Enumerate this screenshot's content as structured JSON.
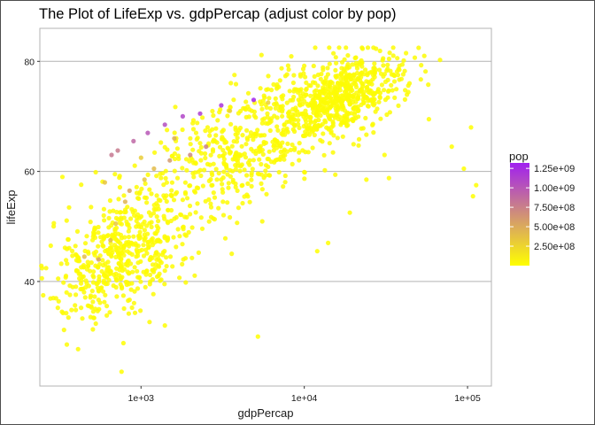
{
  "chart_data": {
    "type": "scatter",
    "title": "The Plot of LifeExp vs. gdpPercap (adjust color by pop)",
    "xlabel": "gdpPercap",
    "ylabel": "lifeExp",
    "x_scale": "log10",
    "xlim": [
      240,
      140000
    ],
    "ylim": [
      21,
      86
    ],
    "x_ticks": [
      1000,
      10000,
      100000
    ],
    "x_tick_labels": [
      "1e+03",
      "1e+04",
      "1e+05"
    ],
    "y_ticks": [
      40,
      60,
      80
    ],
    "y_tick_labels": [
      "40",
      "60",
      "80"
    ],
    "grid": "horizontal major",
    "legend": {
      "title": "pop",
      "placement": "right",
      "labels": [
        "1.25e+09",
        "1.00e+09",
        "7.50e+08",
        "5.00e+08",
        "2.50e+08"
      ],
      "values": [
        1250000000,
        1000000000,
        750000000,
        500000000,
        250000000
      ],
      "range": [
        60000,
        1320000000
      ],
      "low_color": "#FFFF00",
      "high_color": "#A020F0"
    },
    "point_opacity": 0.85,
    "highlight_points": [
      {
        "x": 660,
        "y": 63.0,
        "pop": 800000000
      },
      {
        "x": 720,
        "y": 63.8,
        "pop": 780000000
      },
      {
        "x": 900,
        "y": 65.5,
        "pop": 900000000
      },
      {
        "x": 1100,
        "y": 67.0,
        "pop": 1000000000
      },
      {
        "x": 1400,
        "y": 68.5,
        "pop": 1050000000
      },
      {
        "x": 1800,
        "y": 70.0,
        "pop": 1100000000
      },
      {
        "x": 2300,
        "y": 70.5,
        "pop": 1150000000
      },
      {
        "x": 3100,
        "y": 72.0,
        "pop": 1200000000
      },
      {
        "x": 4900,
        "y": 73.0,
        "pop": 1300000000
      },
      {
        "x": 1200,
        "y": 60.5,
        "pop": 400000000
      },
      {
        "x": 1500,
        "y": 62.0,
        "pop": 600000000
      },
      {
        "x": 2000,
        "y": 63.0,
        "pop": 700000000
      },
      {
        "x": 2500,
        "y": 64.5,
        "pop": 750000000
      },
      {
        "x": 1050,
        "y": 58.5,
        "pop": 350000000
      },
      {
        "x": 850,
        "y": 56.5,
        "pop": 550000000
      },
      {
        "x": 800,
        "y": 54.5,
        "pop": 450000000
      },
      {
        "x": 600,
        "y": 58.0,
        "pop": 350000000
      },
      {
        "x": 1600,
        "y": 66.0,
        "pop": 500000000
      },
      {
        "x": 1000,
        "y": 62.5,
        "pop": 300000000
      },
      {
        "x": 700,
        "y": 50.5,
        "pop": 350000000
      },
      {
        "x": 550,
        "y": 44.0,
        "pop": 560000000
      },
      {
        "x": 450,
        "y": 44.5,
        "pop": 400000000
      },
      {
        "x": 650,
        "y": 47.5,
        "pop": 400000000
      },
      {
        "x": 3500,
        "y": 71.0,
        "pop": 300000000
      },
      {
        "x": 6000,
        "y": 72.5,
        "pop": 280000000
      }
    ],
    "clouds": [
      {
        "n": 520,
        "lx_mean": 2.87,
        "lx_sd": 0.22,
        "y_mean": 45,
        "y_sd": 5.5,
        "slope": 12,
        "pop": 15000000
      },
      {
        "n": 480,
        "lx_mean": 3.62,
        "lx_sd": 0.32,
        "y_mean": 64,
        "y_sd": 5.5,
        "slope": 14,
        "pop": 20000000
      },
      {
        "n": 600,
        "lx_mean": 4.22,
        "lx_sd": 0.2,
        "y_mean": 73.5,
        "y_sd": 3.2,
        "slope": 9,
        "pop": 25000000
      }
    ],
    "outlier_points": [
      {
        "x": 58000,
        "y": 69.5,
        "pop": 5000000
      },
      {
        "x": 80000,
        "y": 64.5,
        "pop": 3000000
      },
      {
        "x": 95000,
        "y": 60.5,
        "pop": 2000000
      },
      {
        "x": 108000,
        "y": 55.5,
        "pop": 2000000
      },
      {
        "x": 113000,
        "y": 57.5,
        "pop": 2000000
      },
      {
        "x": 105000,
        "y": 68.0,
        "pop": 2000000
      },
      {
        "x": 31000,
        "y": 63.0,
        "pop": 3000000
      },
      {
        "x": 24000,
        "y": 58.5,
        "pop": 3000000
      },
      {
        "x": 33000,
        "y": 58.8,
        "pop": 3000000
      },
      {
        "x": 19000,
        "y": 52.5,
        "pop": 2000000
      },
      {
        "x": 14000,
        "y": 47.0,
        "pop": 2000000
      },
      {
        "x": 12000,
        "y": 45.5,
        "pop": 2000000
      },
      {
        "x": 760,
        "y": 23.6,
        "pop": 5000000
      },
      {
        "x": 780,
        "y": 28.8,
        "pop": 5000000
      },
      {
        "x": 1400,
        "y": 32.0,
        "pop": 5000000
      },
      {
        "x": 5200,
        "y": 30.0,
        "pop": 3000000
      },
      {
        "x": 350,
        "y": 38.0,
        "pop": 3000000
      },
      {
        "x": 280,
        "y": 46.5,
        "pop": 3000000
      },
      {
        "x": 330,
        "y": 59.0,
        "pop": 3000000
      },
      {
        "x": 42000,
        "y": 81.5,
        "pop": 5000000
      }
    ]
  }
}
